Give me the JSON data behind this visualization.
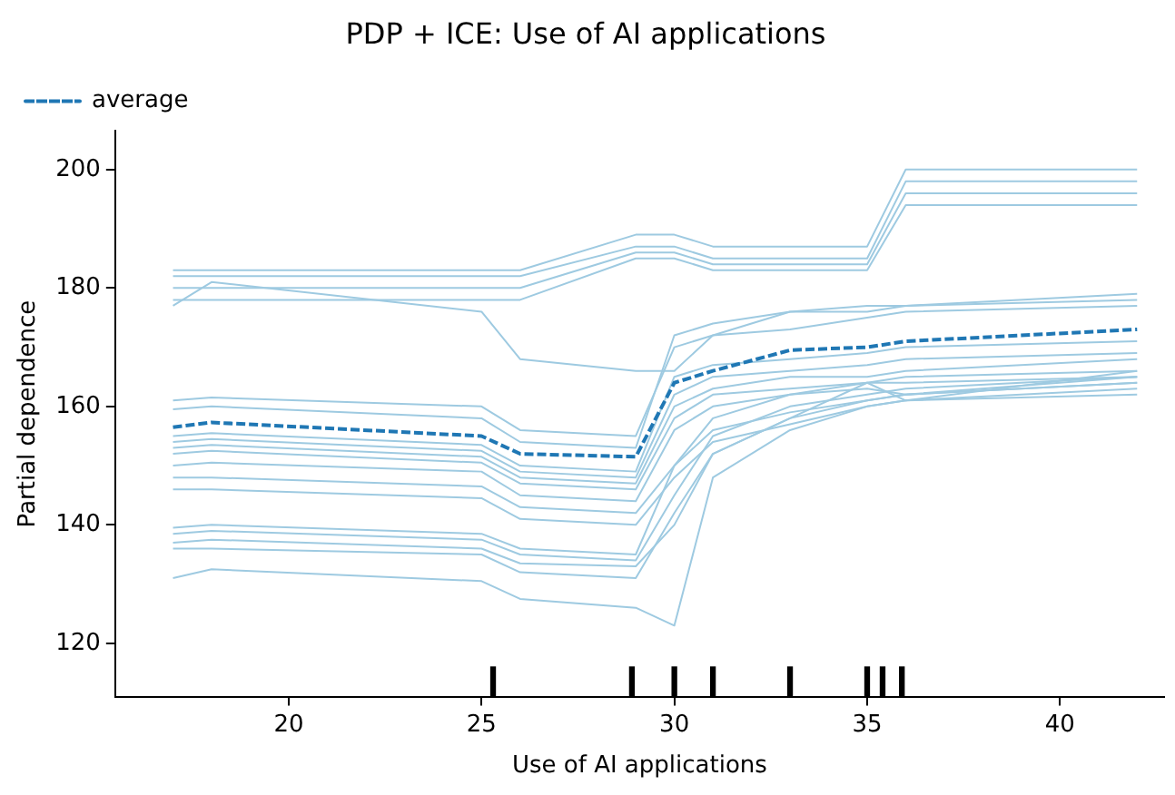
{
  "chart_data": {
    "type": "line",
    "title": "PDP + ICE: Use of AI applications",
    "xlabel": "Use of AI applications",
    "ylabel": "Partial dependence",
    "x": [
      17,
      18,
      25,
      26,
      29,
      30,
      31,
      33,
      35,
      36,
      42
    ],
    "xlim": [
      15.5,
      42.7
    ],
    "xticks": [
      20,
      25,
      30,
      35,
      40
    ],
    "ylim": [
      111,
      206.5
    ],
    "yticks": [
      120,
      140,
      160,
      180,
      200
    ],
    "grid": false,
    "legend": "top left",
    "marker": "none",
    "series": [
      {
        "color": "#9ecae1",
        "values": [
          183,
          183,
          183,
          183,
          189,
          189,
          187,
          187,
          187,
          200,
          200
        ]
      },
      {
        "color": "#9ecae1",
        "values": [
          182,
          182,
          182,
          182,
          187,
          187,
          185,
          185,
          185,
          198,
          198
        ]
      },
      {
        "color": "#9ecae1",
        "values": [
          180,
          180,
          180,
          180,
          186,
          186,
          184,
          184,
          184,
          196,
          196
        ]
      },
      {
        "color": "#9ecae1",
        "values": [
          178,
          178,
          178,
          178,
          185,
          185,
          183,
          183,
          183,
          194,
          194
        ]
      },
      {
        "color": "#9ecae1",
        "values": [
          177,
          181,
          176,
          168,
          166,
          166,
          172,
          176,
          177,
          177,
          179
        ]
      },
      {
        "color": "#9ecae1",
        "values": [
          161,
          161.5,
          160,
          156,
          155,
          170,
          172,
          173,
          175,
          176,
          177
        ]
      },
      {
        "color": "#9ecae1",
        "values": [
          159.5,
          160,
          158,
          154,
          153,
          172,
          174,
          176,
          176,
          177,
          178
        ]
      },
      {
        "color": "#9ecae1",
        "values": [
          155,
          155.5,
          153.5,
          150,
          149,
          165,
          167,
          168,
          169,
          170,
          171
        ]
      },
      {
        "color": "#9ecae1",
        "values": [
          154,
          154.5,
          152.5,
          149,
          148,
          162,
          165,
          166,
          167,
          168,
          169
        ]
      },
      {
        "color": "#9ecae1",
        "values": [
          153,
          153.5,
          151.5,
          148,
          147,
          160,
          163,
          165,
          165,
          166,
          168
        ]
      },
      {
        "color": "#9ecae1",
        "values": [
          152,
          152.5,
          150.5,
          147,
          146,
          158,
          162,
          163,
          164,
          161,
          166
        ]
      },
      {
        "color": "#9ecae1",
        "values": [
          150,
          150.5,
          149,
          145,
          144,
          156,
          160,
          162,
          163,
          162,
          165
        ]
      },
      {
        "color": "#9ecae1",
        "values": [
          148,
          148,
          146.5,
          143,
          142,
          150,
          156,
          159,
          161,
          162,
          164
        ]
      },
      {
        "color": "#9ecae1",
        "values": [
          146,
          146,
          144.5,
          141,
          140,
          148,
          154,
          157,
          160,
          161,
          163
        ]
      },
      {
        "color": "#9ecae1",
        "values": [
          139.5,
          140,
          138.5,
          136,
          135,
          150,
          158,
          162,
          164,
          165,
          166
        ]
      },
      {
        "color": "#9ecae1",
        "values": [
          138.5,
          139,
          137.5,
          135,
          134,
          145,
          155,
          160,
          162,
          163,
          165
        ]
      },
      {
        "color": "#9ecae1",
        "values": [
          137,
          137.5,
          136,
          133.5,
          133,
          140,
          152,
          158,
          161,
          162,
          164
        ]
      },
      {
        "color": "#9ecae1",
        "values": [
          136,
          136,
          135,
          132,
          131,
          142,
          152,
          158,
          164,
          164,
          165
        ]
      },
      {
        "color": "#9ecae1",
        "values": [
          131,
          132.5,
          130.5,
          127.5,
          126,
          123,
          148,
          156,
          160,
          161,
          162
        ]
      },
      {
        "name": "average",
        "color": "#1f77b4",
        "line_style": "dashed",
        "values": [
          156.5,
          157.3,
          155,
          152,
          151.5,
          164,
          166,
          169.5,
          170,
          171,
          173
        ]
      },
      {
        "type": "bar",
        "color": "#000000",
        "x": [
          25.3,
          28.9,
          30,
          31,
          33,
          35,
          35.4,
          35.9
        ],
        "base": [
          111,
          111,
          111,
          111,
          111,
          111,
          111,
          111
        ],
        "values": [
          5,
          5,
          5,
          5,
          5,
          5,
          5,
          5
        ]
      }
    ]
  }
}
